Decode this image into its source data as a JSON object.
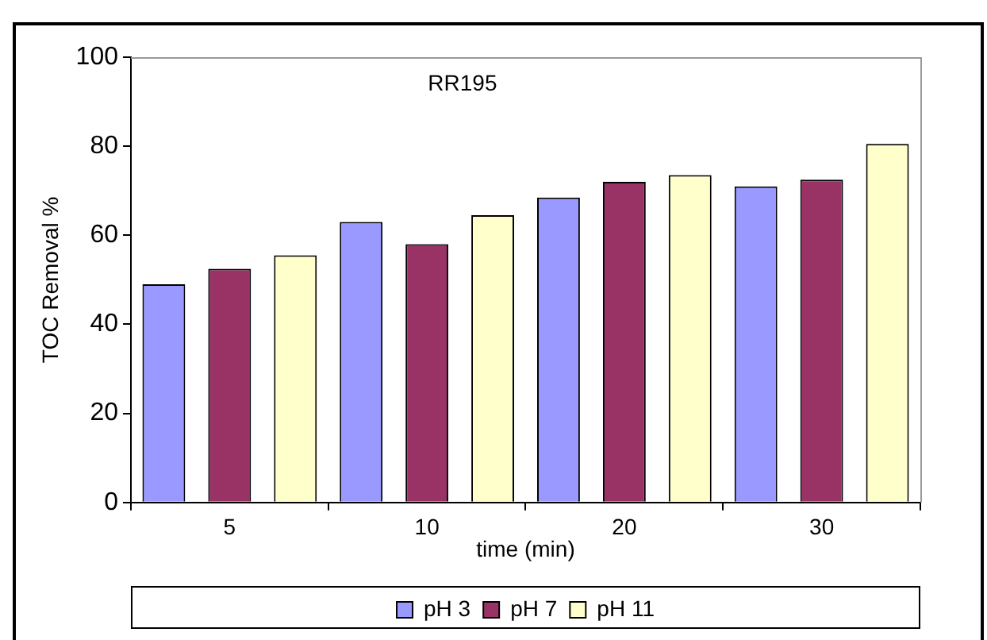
{
  "chart_data": {
    "type": "bar",
    "title": "RR195",
    "xlabel": "time (min)",
    "ylabel": "TOC Removal %",
    "categories": [
      "5",
      "10",
      "20",
      "30"
    ],
    "series": [
      {
        "name": "pH 3",
        "color": "#9999ff",
        "values": [
          49,
          63,
          68.5,
          71
        ]
      },
      {
        "name": "pH 7",
        "color": "#993366",
        "values": [
          52.5,
          58,
          72,
          72.5
        ]
      },
      {
        "name": "pH 11",
        "color": "#ffffcc",
        "values": [
          55.5,
          64.5,
          73.5,
          80.5
        ]
      }
    ],
    "ylim": [
      0,
      100
    ],
    "yticks": [
      0,
      20,
      40,
      60,
      80,
      100
    ],
    "grid": false,
    "legend": "bottom"
  }
}
